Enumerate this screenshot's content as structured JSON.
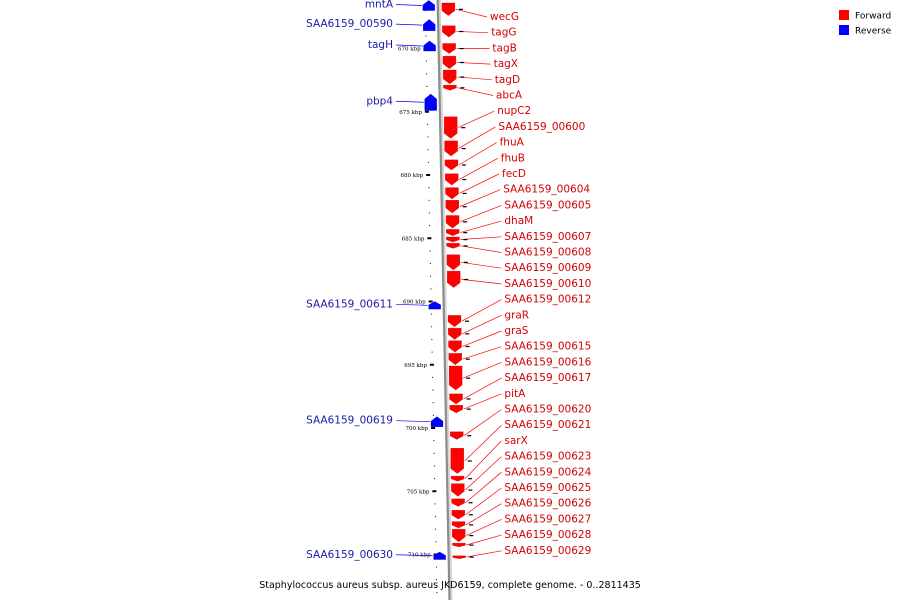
{
  "caption": "Staphylococcus aureus subsp. aureus JKD6159, complete genome. - 0..2811435",
  "legend": [
    {
      "label": "Forward",
      "color": "#ff0000"
    },
    {
      "label": "Reverse",
      "color": "#0000ff"
    }
  ],
  "colors": {
    "forward": "#ff0000",
    "reverse": "#0000ff",
    "backbone": "#8c8c8c",
    "forward_label": "#d40000",
    "reverse_label": "#1a1aa8"
  },
  "ticks": [
    {
      "kbp": 670,
      "label": "670 kbp"
    },
    {
      "kbp": 675,
      "label": "675 kbp"
    },
    {
      "kbp": 680,
      "label": "680 kbp"
    },
    {
      "kbp": 685,
      "label": "685 kbp"
    },
    {
      "kbp": 690,
      "label": "690 kbp"
    },
    {
      "kbp": 695,
      "label": "695 kbp"
    },
    {
      "kbp": 700,
      "label": "700 kbp"
    },
    {
      "kbp": 705,
      "label": "705 kbp"
    },
    {
      "kbp": 710,
      "label": "710 kbp"
    }
  ],
  "reverse_genes": [
    {
      "name": "mntA",
      "start_kbp": 666.2,
      "end_kbp": 667.0
    },
    {
      "name": "SAA6159_00590",
      "start_kbp": 667.7,
      "end_kbp": 668.6
    },
    {
      "name": "tagH",
      "start_kbp": 669.4,
      "end_kbp": 670.2
    },
    {
      "name": "pbp4",
      "start_kbp": 673.6,
      "end_kbp": 674.9
    },
    {
      "name": "SAA6159_00611",
      "start_kbp": 690.0,
      "end_kbp": 690.6
    },
    {
      "name": "SAA6159_00619",
      "start_kbp": 699.1,
      "end_kbp": 699.9
    },
    {
      "name": "SAA6159_00630",
      "start_kbp": 709.8,
      "end_kbp": 710.4
    }
  ],
  "forward_genes": [
    {
      "name": "wecG",
      "start_kbp": 666.4,
      "end_kbp": 667.4
    },
    {
      "name": "tagG",
      "start_kbp": 668.2,
      "end_kbp": 669.1
    },
    {
      "name": "tagB",
      "start_kbp": 669.6,
      "end_kbp": 670.4
    },
    {
      "name": "tagX",
      "start_kbp": 670.6,
      "end_kbp": 671.6
    },
    {
      "name": "tagD",
      "start_kbp": 671.7,
      "end_kbp": 672.8
    },
    {
      "name": "abcA",
      "start_kbp": 672.9,
      "end_kbp": 673.3
    },
    {
      "name": "nupC2",
      "start_kbp": 675.4,
      "end_kbp": 677.1
    },
    {
      "name": "SAA6159_00600",
      "start_kbp": 677.3,
      "end_kbp": 678.5
    },
    {
      "name": "fhuA",
      "start_kbp": 678.8,
      "end_kbp": 679.6
    },
    {
      "name": "fhuB",
      "start_kbp": 679.9,
      "end_kbp": 680.8
    },
    {
      "name": "fecD",
      "start_kbp": 681.0,
      "end_kbp": 681.9
    },
    {
      "name": "SAA6159_00604",
      "start_kbp": 682.0,
      "end_kbp": 683.0
    },
    {
      "name": "SAA6159_00605",
      "start_kbp": 683.2,
      "end_kbp": 684.2
    },
    {
      "name": "dhaM",
      "start_kbp": 684.3,
      "end_kbp": 684.8
    },
    {
      "name": "SAA6159_00607",
      "start_kbp": 684.9,
      "end_kbp": 685.3
    },
    {
      "name": "SAA6159_00608",
      "start_kbp": 685.4,
      "end_kbp": 685.8
    },
    {
      "name": "SAA6159_00609",
      "start_kbp": 686.3,
      "end_kbp": 687.5
    },
    {
      "name": "SAA6159_00610",
      "start_kbp": 687.6,
      "end_kbp": 688.9
    },
    {
      "name": "SAA6159_00612",
      "start_kbp": 691.1,
      "end_kbp": 692.0
    },
    {
      "name": "graR",
      "start_kbp": 692.1,
      "end_kbp": 693.0
    },
    {
      "name": "graS",
      "start_kbp": 693.1,
      "end_kbp": 694.0
    },
    {
      "name": "SAA6159_00615",
      "start_kbp": 694.1,
      "end_kbp": 695.0
    },
    {
      "name": "SAA6159_00616",
      "start_kbp": 695.1,
      "end_kbp": 697.0
    },
    {
      "name": "SAA6159_00617",
      "start_kbp": 697.3,
      "end_kbp": 698.1
    },
    {
      "name": "pitA",
      "start_kbp": 698.2,
      "end_kbp": 698.8
    },
    {
      "name": "SAA6159_00620",
      "start_kbp": 700.3,
      "end_kbp": 700.9
    },
    {
      "name": "SAA6159_00621",
      "start_kbp": 701.6,
      "end_kbp": 703.6
    },
    {
      "name": "sarX",
      "start_kbp": 703.8,
      "end_kbp": 704.2
    },
    {
      "name": "SAA6159_00623",
      "start_kbp": 704.4,
      "end_kbp": 705.4
    },
    {
      "name": "SAA6159_00624",
      "start_kbp": 705.6,
      "end_kbp": 706.2
    },
    {
      "name": "SAA6159_00625",
      "start_kbp": 706.5,
      "end_kbp": 707.2
    },
    {
      "name": "SAA6159_00626",
      "start_kbp": 707.4,
      "end_kbp": 707.9
    },
    {
      "name": "SAA6159_00627",
      "start_kbp": 708.0,
      "end_kbp": 709.0
    },
    {
      "name": "SAA6159_00628",
      "start_kbp": 709.1,
      "end_kbp": 709.4
    },
    {
      "name": "SAA6159_00629",
      "start_kbp": 710.1,
      "end_kbp": 710.3
    }
  ]
}
